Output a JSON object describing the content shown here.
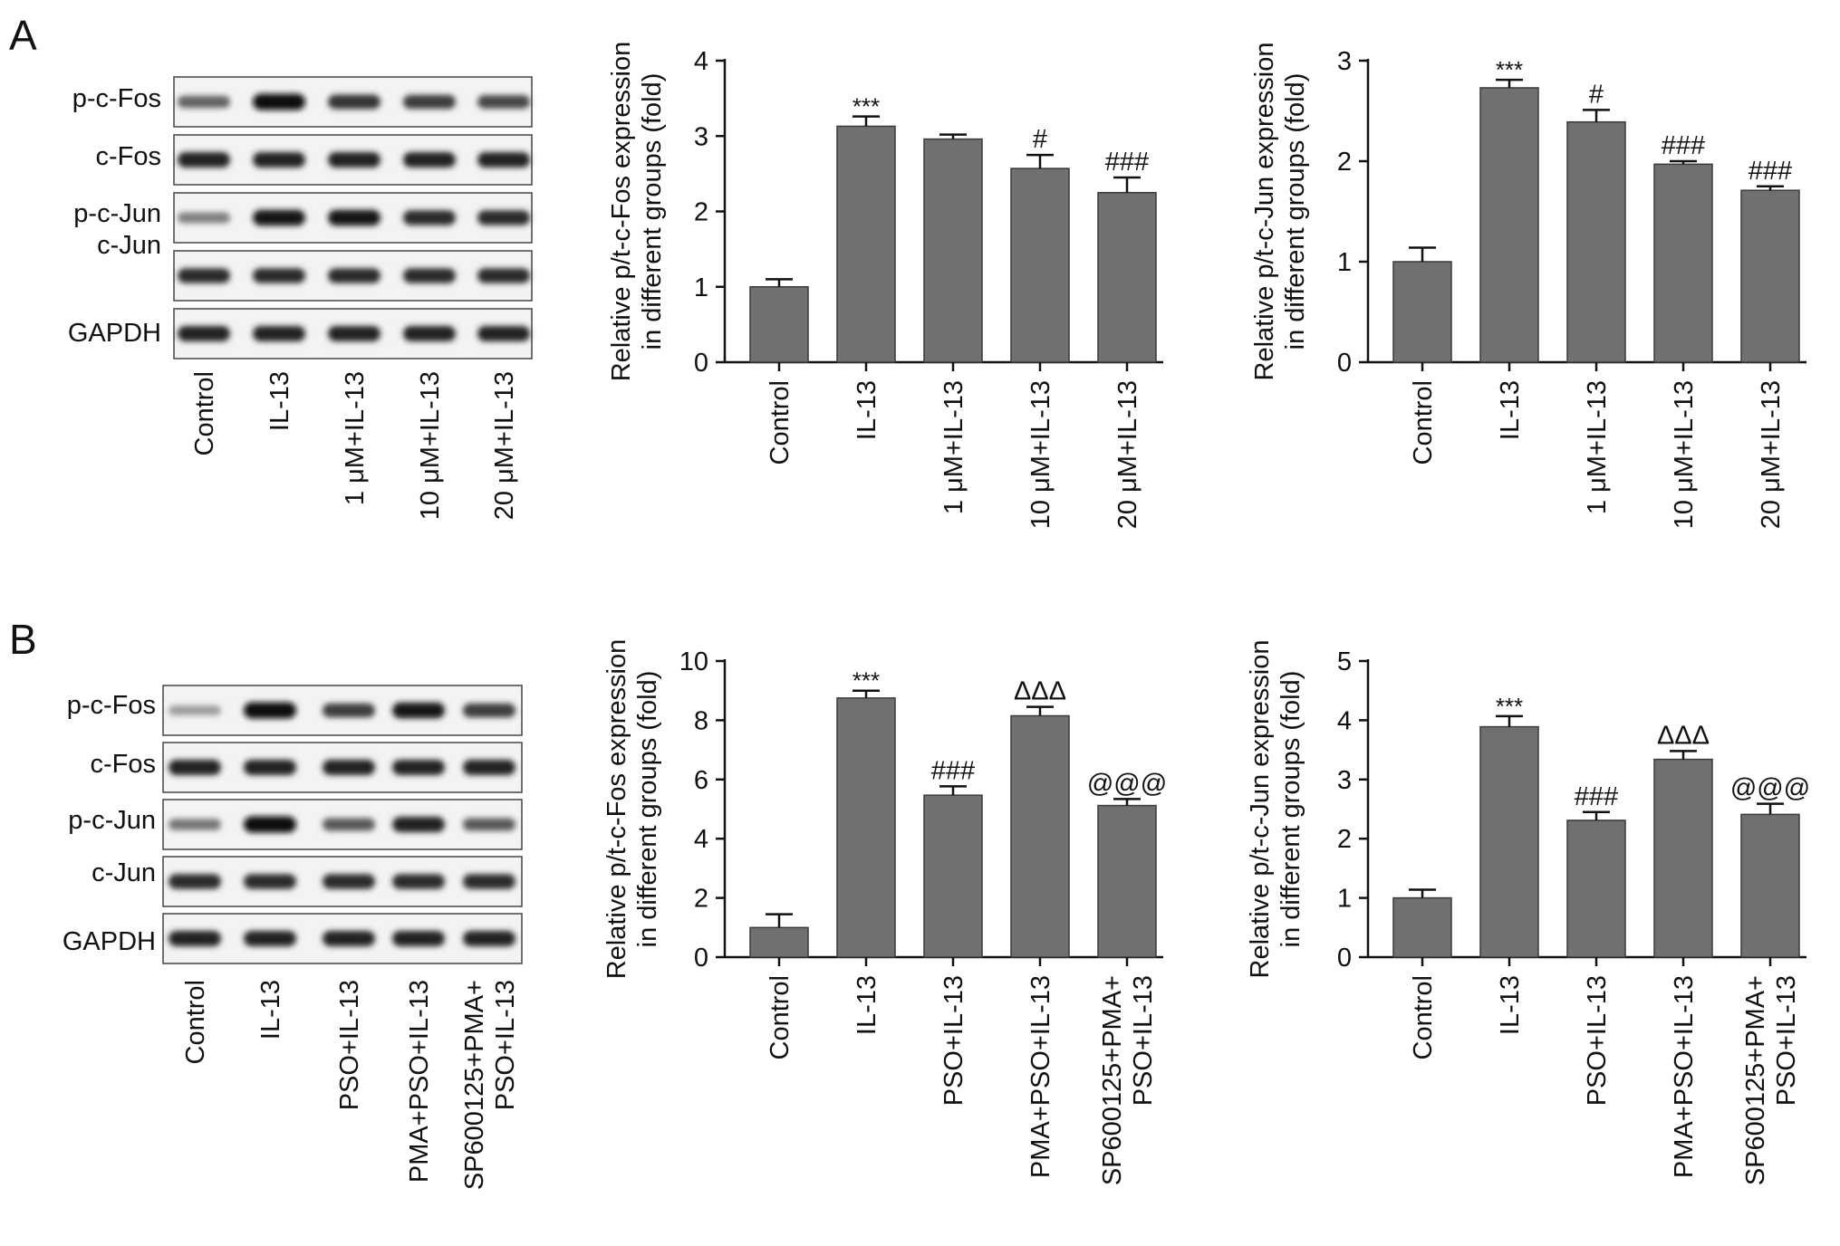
{
  "panels": [
    {
      "letter": "A"
    },
    {
      "letter": "B"
    }
  ],
  "blots": [
    {
      "rows": [
        "p-c-Fos",
        "c-Fos",
        "p-c-Jun",
        "c-Jun",
        "GAPDH"
      ],
      "lanes": [
        "Control",
        "IL-13",
        "1 μM+IL-13",
        "10 μM+IL-13",
        "20 μM+IL-13"
      ],
      "intensity": [
        [
          0.55,
          1.0,
          0.8,
          0.75,
          0.7
        ],
        [
          0.9,
          0.9,
          0.9,
          0.9,
          0.9
        ],
        [
          0.4,
          0.95,
          0.95,
          0.85,
          0.85
        ],
        [
          0.85,
          0.85,
          0.85,
          0.85,
          0.85
        ],
        [
          0.9,
          0.9,
          0.9,
          0.9,
          0.9
        ]
      ]
    },
    {
      "rows": [
        "p-c-Fos",
        "c-Fos",
        "p-c-Jun",
        "c-Jun",
        "GAPDH"
      ],
      "lanes": [
        "Control",
        "IL-13",
        "PSO+IL-13",
        "PMA+PSO+IL-13",
        "SP600125+PMA+\nPSO+IL-13"
      ],
      "intensity": [
        [
          0.25,
          1.0,
          0.75,
          0.95,
          0.75
        ],
        [
          0.9,
          0.9,
          0.9,
          0.9,
          0.9
        ],
        [
          0.45,
          1.0,
          0.6,
          0.9,
          0.6
        ],
        [
          0.85,
          0.85,
          0.85,
          0.85,
          0.85
        ],
        [
          0.9,
          0.9,
          0.9,
          0.9,
          0.9
        ]
      ]
    }
  ],
  "chart_data": [
    {
      "type": "bar",
      "ylabel": "Relative p/t-c-Fos expression\nin different groups (fold)",
      "categories": [
        "Control",
        "IL-13",
        "1 μM+IL-13",
        "10 μM+IL-13",
        "20 μM+IL-13"
      ],
      "values": [
        1.0,
        3.13,
        2.96,
        2.57,
        2.25
      ],
      "errors": [
        0.1,
        0.13,
        0.06,
        0.18,
        0.2
      ],
      "annotations": [
        "",
        "***",
        "",
        "#",
        "###"
      ],
      "ylim": [
        0,
        4
      ],
      "yticks": [
        0,
        1,
        2,
        3,
        4
      ],
      "color": "#707070"
    },
    {
      "type": "bar",
      "ylabel": "Relative p/t-c-Jun expression\nin different groups (fold)",
      "categories": [
        "Control",
        "IL-13",
        "1 μM+IL-13",
        "10 μM+IL-13",
        "20 μM+IL-13"
      ],
      "values": [
        1.0,
        2.73,
        2.39,
        1.97,
        1.71
      ],
      "errors": [
        0.14,
        0.08,
        0.12,
        0.03,
        0.04
      ],
      "annotations": [
        "",
        "***",
        "#",
        "###",
        "###"
      ],
      "ylim": [
        0,
        3
      ],
      "yticks": [
        0,
        1,
        2,
        3
      ],
      "color": "#707070"
    },
    {
      "type": "bar",
      "ylabel": "Relative p/t-c-Fos expression\nin different groups (fold)",
      "categories": [
        "Control",
        "IL-13",
        "PSO+IL-13",
        "PMA+PSO+IL-13",
        "SP600125+PMA+\nPSO+IL-13"
      ],
      "values": [
        1.0,
        8.75,
        5.47,
        8.15,
        5.12
      ],
      "errors": [
        0.45,
        0.25,
        0.3,
        0.3,
        0.22
      ],
      "annotations": [
        "",
        "***",
        "###",
        "ΔΔΔ",
        "@@@"
      ],
      "ylim": [
        0,
        10
      ],
      "yticks": [
        0,
        2,
        4,
        6,
        8,
        10
      ],
      "color": "#707070"
    },
    {
      "type": "bar",
      "ylabel": "Relative p/t-c-Jun expression\nin different groups (fold)",
      "categories": [
        "Control",
        "IL-13",
        "PSO+IL-13",
        "PMA+PSO+IL-13",
        "SP600125+PMA+\nPSO+IL-13"
      ],
      "values": [
        1.0,
        3.89,
        2.31,
        3.34,
        2.41
      ],
      "errors": [
        0.14,
        0.18,
        0.14,
        0.14,
        0.18
      ],
      "annotations": [
        "",
        "***",
        "###",
        "ΔΔΔ",
        "@@@"
      ],
      "ylim": [
        0,
        5
      ],
      "yticks": [
        0,
        1,
        2,
        3,
        4,
        5
      ],
      "color": "#707070"
    }
  ]
}
